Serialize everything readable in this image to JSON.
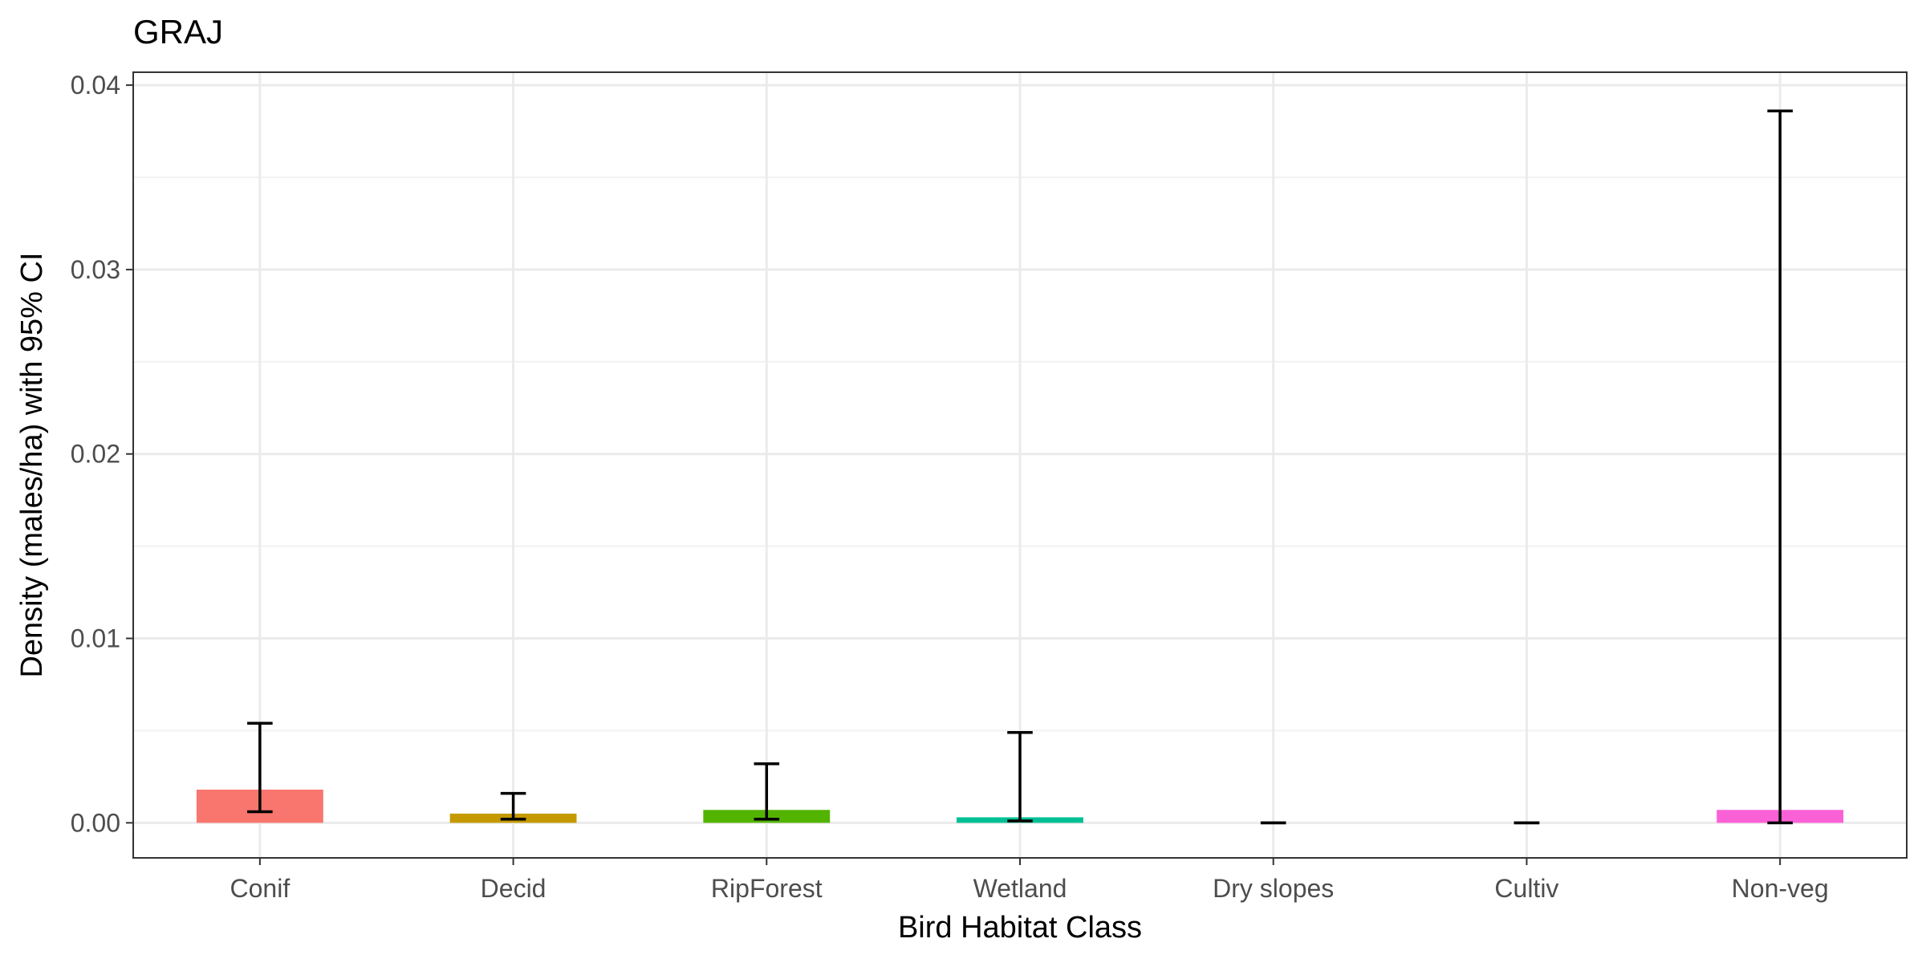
{
  "chart_data": {
    "type": "bar",
    "title": "GRAJ",
    "xlabel": "Bird Habitat Class",
    "ylabel": "Density (males/ha) with 95% CI",
    "categories": [
      "Conif",
      "Decid",
      "RipForest",
      "Wetland",
      "Dry slopes",
      "Cultiv",
      "Non-veg"
    ],
    "values": [
      0.0018,
      0.0005,
      0.0007,
      0.0003,
      0.0,
      0.0,
      0.0007
    ],
    "ci_lower": [
      0.0006,
      0.0002,
      0.0002,
      0.0001,
      0.0,
      0.0,
      0.0
    ],
    "ci_upper": [
      0.0054,
      0.0016,
      0.0032,
      0.0049,
      0.0,
      0.0,
      0.0386
    ],
    "colors": [
      "#F8766D",
      "#C49A00",
      "#53B400",
      "#00C094",
      "#00B6EB",
      "#A58AFF",
      "#FB61D7"
    ],
    "ylim": [
      -0.0019,
      0.0407
    ],
    "yticks": [
      0.0,
      0.01,
      0.02,
      0.03,
      0.04
    ],
    "ytick_labels": [
      "0.00",
      "0.01",
      "0.02",
      "0.03",
      "0.04"
    ],
    "grid": true,
    "legend": "none"
  }
}
